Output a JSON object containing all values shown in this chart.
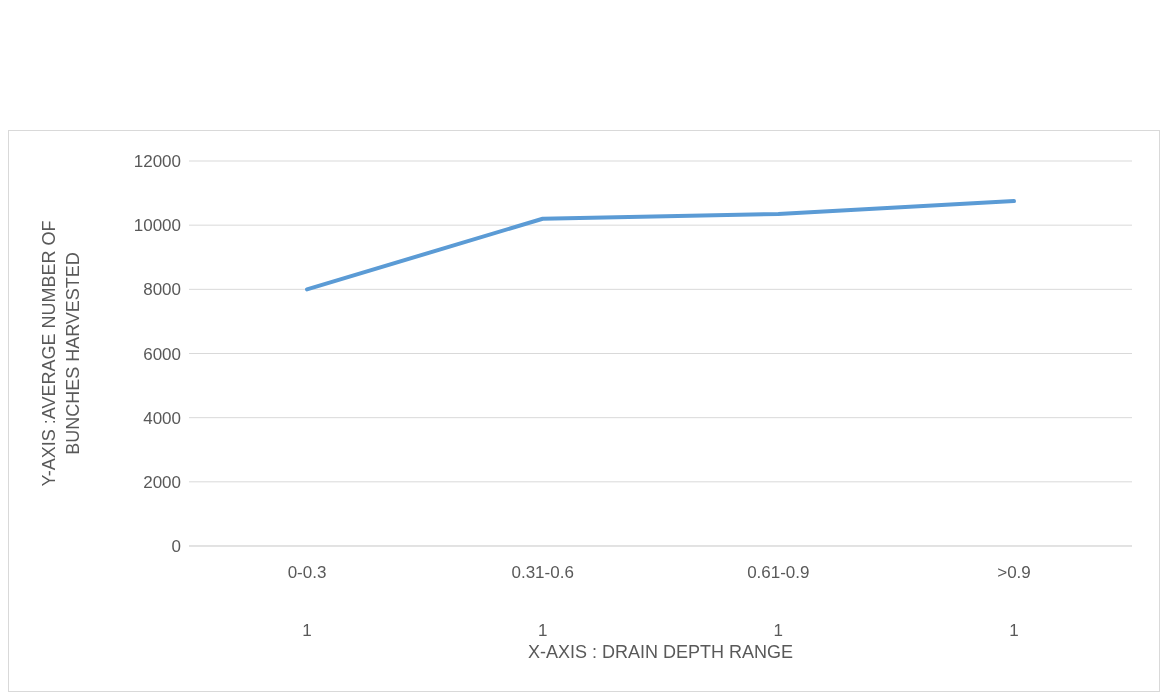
{
  "chart_data": {
    "type": "line",
    "xlabel": "X-AXIS : DRAIN DEPTH RANGE",
    "ylabel": "Y-AXIS :AVERAGE NUMBER OF BUNCHES HARVESTED",
    "categories": [
      "0-0.3",
      "0.31-0.6",
      "0.61-0.9",
      ">0.9"
    ],
    "series": [
      {
        "color": "#5b9bd5",
        "values": [
          8000,
          10200,
          10350,
          10750
        ]
      }
    ],
    "ylim": [
      0,
      12000
    ],
    "yticks": [
      0,
      2000,
      4000,
      6000,
      8000,
      10000,
      12000
    ],
    "grid": "y",
    "legend": false,
    "marker": "none",
    "line_style": "solid",
    "annotations": [
      "1",
      "1",
      "1",
      "1"
    ]
  }
}
